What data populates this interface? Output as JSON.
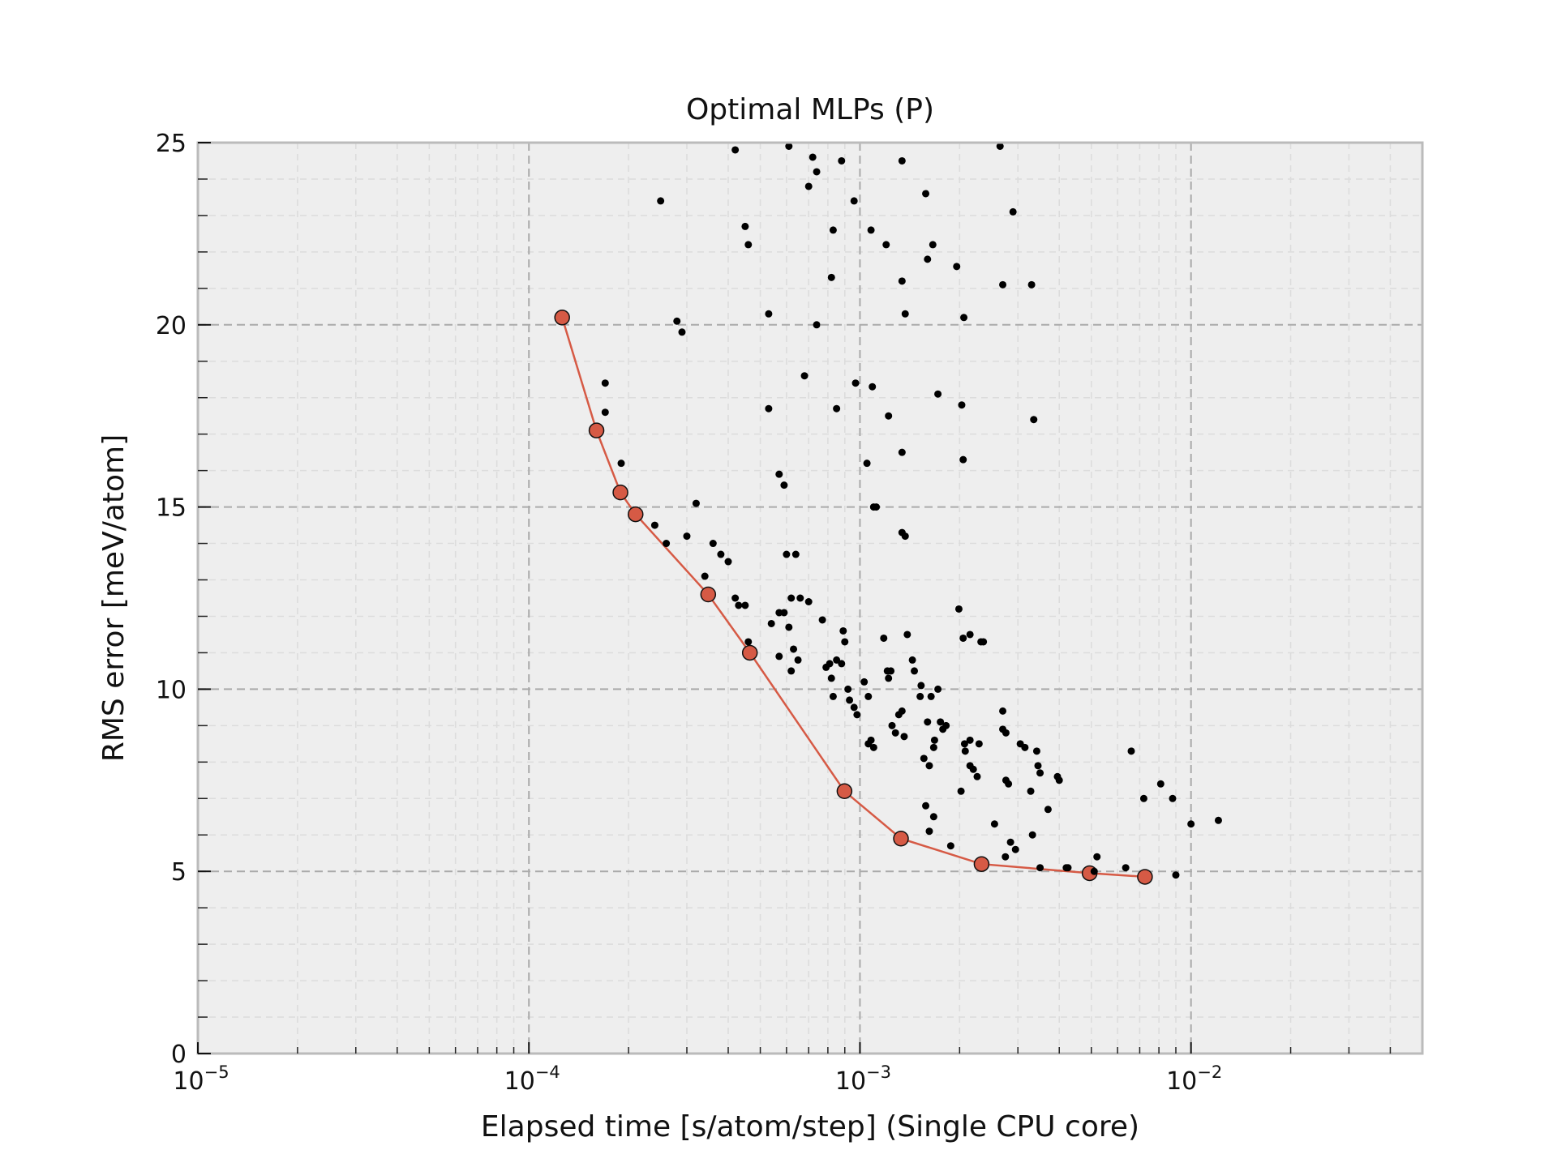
{
  "chart_data": {
    "type": "scatter",
    "title": "Optimal MLPs (P)",
    "xlabel": "Elapsed time [s/atom/step] (Single CPU core)",
    "ylabel": "RMS error [meV/atom]",
    "xscale": "log",
    "xlim": [
      1e-05,
      0.05
    ],
    "ylim": [
      0,
      25
    ],
    "grid": true,
    "x_ticks": [
      {
        "value": 1e-05,
        "base": "10",
        "exp": "−5"
      },
      {
        "value": 0.0001,
        "base": "10",
        "exp": "−4"
      },
      {
        "value": 0.001,
        "base": "10",
        "exp": "−3"
      },
      {
        "value": 0.01,
        "base": "10",
        "exp": "−2"
      }
    ],
    "y_ticks": [
      {
        "value": 0,
        "label": "0"
      },
      {
        "value": 5,
        "label": "5"
      },
      {
        "value": 10,
        "label": "10"
      },
      {
        "value": 15,
        "label": "15"
      },
      {
        "value": 20,
        "label": "20"
      },
      {
        "value": 25,
        "label": "25"
      }
    ],
    "colors": {
      "pareto": "#d65a45",
      "points": "#000000",
      "plot_bg": "#eeeeee",
      "grid": "#aaaaaa",
      "frame": "#bbbbbb"
    },
    "series": [
      {
        "role": "candidates",
        "points": [
          [
            0.00025,
            23.4
          ],
          [
            0.00028,
            20.1
          ],
          [
            0.00029,
            19.8
          ],
          [
            0.00042,
            24.8
          ],
          [
            0.00045,
            22.7
          ],
          [
            0.00046,
            22.2
          ],
          [
            0.00053,
            20.3
          ],
          [
            0.00053,
            17.7
          ],
          [
            0.00061,
            24.9
          ],
          [
            0.00072,
            24.6
          ],
          [
            0.0007,
            23.8
          ],
          [
            0.00074,
            24.2
          ],
          [
            0.00074,
            20.0
          ],
          [
            0.00068,
            18.6
          ],
          [
            0.00082,
            21.3
          ],
          [
            0.00083,
            22.6
          ],
          [
            0.00085,
            17.7
          ],
          [
            0.00088,
            24.5
          ],
          [
            0.00096,
            23.4
          ],
          [
            0.00097,
            18.4
          ],
          [
            0.00108,
            22.6
          ],
          [
            0.00109,
            18.3
          ],
          [
            0.0012,
            22.2
          ],
          [
            0.00122,
            17.5
          ],
          [
            0.00134,
            24.5
          ],
          [
            0.00134,
            21.2
          ],
          [
            0.00137,
            20.3
          ],
          [
            0.00158,
            23.6
          ],
          [
            0.00166,
            22.2
          ],
          [
            0.0016,
            21.8
          ],
          [
            0.00196,
            21.6
          ],
          [
            0.00206,
            20.2
          ],
          [
            0.00203,
            17.8
          ],
          [
            0.00205,
            16.3
          ],
          [
            0.00172,
            18.1
          ],
          [
            0.00265,
            24.9
          ],
          [
            0.0029,
            23.1
          ],
          [
            0.0027,
            21.1
          ],
          [
            0.0033,
            21.1
          ],
          [
            0.00335,
            17.4
          ],
          [
            0.00017,
            18.4
          ],
          [
            0.00017,
            17.6
          ],
          [
            0.00019,
            16.2
          ],
          [
            0.00024,
            14.5
          ],
          [
            0.00026,
            14.0
          ],
          [
            0.0003,
            14.2
          ],
          [
            0.00032,
            15.1
          ],
          [
            0.00034,
            13.1
          ],
          [
            0.00036,
            14.0
          ],
          [
            0.00038,
            13.7
          ],
          [
            0.0004,
            13.5
          ],
          [
            0.00042,
            12.5
          ],
          [
            0.00043,
            12.3
          ],
          [
            0.00045,
            12.3
          ],
          [
            0.00046,
            11.3
          ],
          [
            0.00054,
            11.8
          ],
          [
            0.00057,
            12.1
          ],
          [
            0.00059,
            12.1
          ],
          [
            0.0006,
            13.7
          ],
          [
            0.00064,
            13.7
          ],
          [
            0.00062,
            12.5
          ],
          [
            0.00066,
            12.5
          ],
          [
            0.0007,
            12.4
          ],
          [
            0.00061,
            11.7
          ],
          [
            0.00063,
            11.1
          ],
          [
            0.00057,
            10.9
          ],
          [
            0.00062,
            10.5
          ],
          [
            0.00065,
            10.8
          ],
          [
            0.00057,
            15.9
          ],
          [
            0.00059,
            15.6
          ],
          [
            0.00077,
            11.9
          ],
          [
            0.00079,
            10.6
          ],
          [
            0.00081,
            10.7
          ],
          [
            0.00082,
            10.3
          ],
          [
            0.00085,
            10.8
          ],
          [
            0.00089,
            11.6
          ],
          [
            0.0009,
            11.3
          ],
          [
            0.00088,
            10.7
          ],
          [
            0.00083,
            9.8
          ],
          [
            0.00092,
            10.0
          ],
          [
            0.00093,
            9.7
          ],
          [
            0.00096,
            9.5
          ],
          [
            0.00098,
            9.3
          ],
          [
            0.00103,
            10.2
          ],
          [
            0.00106,
            9.8
          ],
          [
            0.00105,
            16.2
          ],
          [
            0.0011,
            15.0
          ],
          [
            0.00112,
            15.0
          ],
          [
            0.00106,
            8.5
          ],
          [
            0.00108,
            8.6
          ],
          [
            0.0011,
            8.4
          ],
          [
            0.00118,
            11.4
          ],
          [
            0.00121,
            10.5
          ],
          [
            0.00124,
            10.5
          ],
          [
            0.00122,
            10.3
          ],
          [
            0.00125,
            9.0
          ],
          [
            0.00128,
            8.8
          ],
          [
            0.00131,
            9.3
          ],
          [
            0.00134,
            9.4
          ],
          [
            0.00136,
            8.7
          ],
          [
            0.00134,
            14.3
          ],
          [
            0.00137,
            14.2
          ],
          [
            0.00134,
            16.5
          ],
          [
            0.00139,
            11.5
          ],
          [
            0.00144,
            10.8
          ],
          [
            0.00146,
            10.5
          ],
          [
            0.00152,
            9.8
          ],
          [
            0.00153,
            10.1
          ],
          [
            0.0016,
            9.1
          ],
          [
            0.00164,
            9.8
          ],
          [
            0.00168,
            8.6
          ],
          [
            0.00167,
            8.4
          ],
          [
            0.00172,
            10.0
          ],
          [
            0.00175,
            9.1
          ],
          [
            0.00178,
            8.9
          ],
          [
            0.00182,
            9.0
          ],
          [
            0.00156,
            8.1
          ],
          [
            0.00162,
            7.9
          ],
          [
            0.00158,
            6.8
          ],
          [
            0.00167,
            6.5
          ],
          [
            0.00162,
            6.1
          ],
          [
            0.00188,
            5.7
          ],
          [
            0.00202,
            7.2
          ],
          [
            0.00208,
            8.3
          ],
          [
            0.00215,
            8.6
          ],
          [
            0.00215,
            7.9
          ],
          [
            0.00207,
            8.5
          ],
          [
            0.0022,
            7.8
          ],
          [
            0.00229,
            8.5
          ],
          [
            0.00226,
            7.6
          ],
          [
            0.00205,
            11.4
          ],
          [
            0.00215,
            11.5
          ],
          [
            0.00232,
            11.3
          ],
          [
            0.00236,
            11.3
          ],
          [
            0.00199,
            12.2
          ],
          [
            0.00255,
            6.3
          ],
          [
            0.0027,
            9.4
          ],
          [
            0.0027,
            8.9
          ],
          [
            0.00276,
            8.8
          ],
          [
            0.00276,
            7.5
          ],
          [
            0.00281,
            7.4
          ],
          [
            0.00285,
            5.8
          ],
          [
            0.00275,
            5.4
          ],
          [
            0.00295,
            5.6
          ],
          [
            0.00305,
            8.5
          ],
          [
            0.00315,
            8.4
          ],
          [
            0.00328,
            7.2
          ],
          [
            0.00332,
            6.0
          ],
          [
            0.00342,
            8.3
          ],
          [
            0.00345,
            7.9
          ],
          [
            0.0035,
            7.7
          ],
          [
            0.0037,
            6.7
          ],
          [
            0.00395,
            7.6
          ],
          [
            0.004,
            7.5
          ],
          [
            0.0035,
            5.1
          ],
          [
            0.0042,
            5.1
          ],
          [
            0.00425,
            5.1
          ],
          [
            0.0051,
            5.0
          ],
          [
            0.0052,
            5.4
          ],
          [
            0.00635,
            5.1
          ],
          [
            0.0066,
            8.3
          ],
          [
            0.0072,
            7.0
          ],
          [
            0.0081,
            7.4
          ],
          [
            0.0088,
            7.0
          ],
          [
            0.009,
            4.9
          ],
          [
            0.01,
            6.3
          ],
          [
            0.0121,
            6.4
          ]
        ]
      },
      {
        "role": "pareto-front",
        "points": [
          [
            0.000126,
            20.2
          ],
          [
            0.00016,
            17.1
          ],
          [
            0.000189,
            15.4
          ],
          [
            0.00021,
            14.8
          ],
          [
            0.000348,
            12.6
          ],
          [
            0.000465,
            11.0
          ],
          [
            0.000898,
            7.2
          ],
          [
            0.00133,
            5.9
          ],
          [
            0.00233,
            5.2
          ],
          [
            0.00494,
            4.95
          ],
          [
            0.00726,
            4.85
          ]
        ]
      }
    ]
  }
}
